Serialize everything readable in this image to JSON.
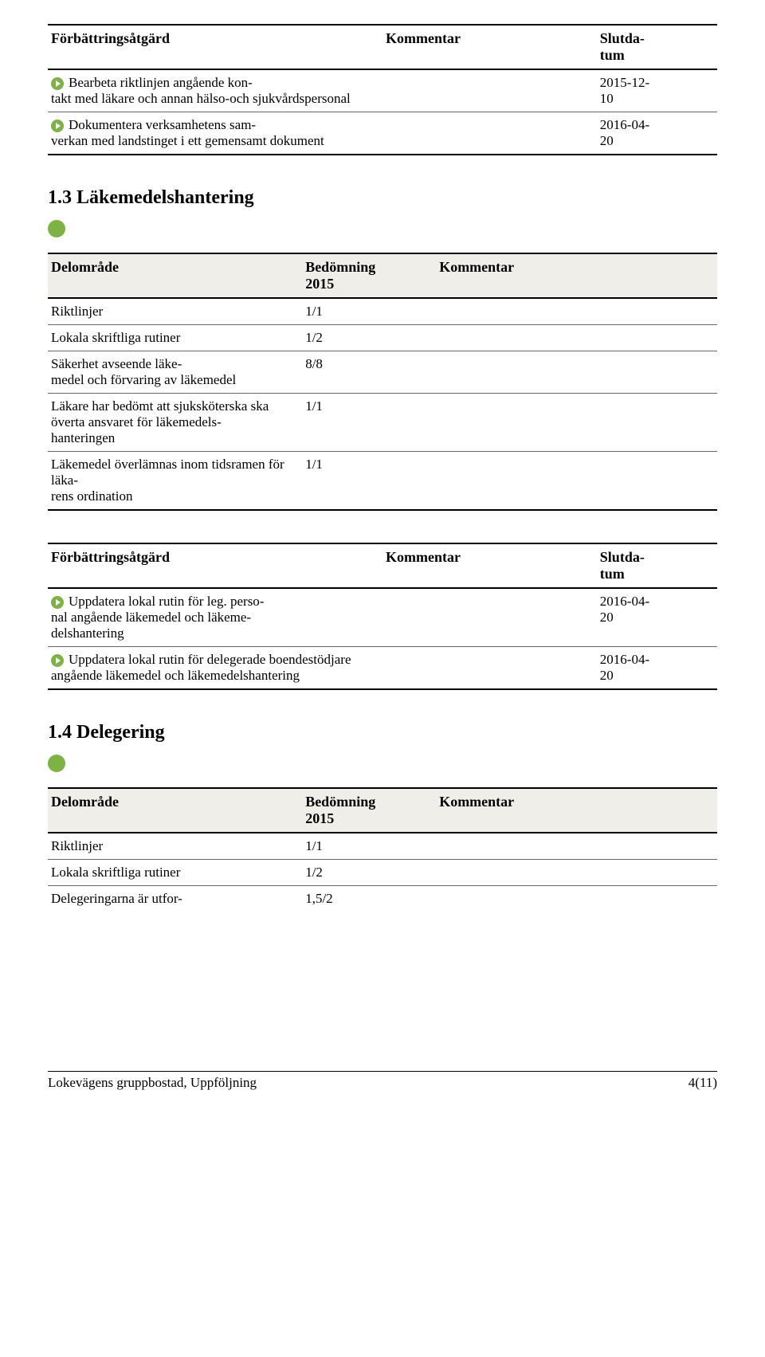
{
  "headers": {
    "forbattring": "Förbättringsåtgärd",
    "kommentar": "Kommentar",
    "slutdatum": "Slutda-\ntum",
    "delomrade": "Delområde",
    "bedomning": "Bedömning\n2015"
  },
  "table1": {
    "rows": [
      {
        "action": "Bearbeta riktlinjen angående kon-\ntakt med läkare och annan hälso-och sjukvårdspersonal",
        "date": "2015-12-\n10"
      },
      {
        "action": "Dokumentera verksamhetens sam-\nverkan med landstinget i ett gemensamt dokument",
        "date": "2016-04-\n20"
      }
    ]
  },
  "section13": "1.3  Läkemedelshantering",
  "table2": {
    "rows": [
      {
        "area": "Riktlinjer",
        "val": "1/1"
      },
      {
        "area": "Lokala skriftliga rutiner",
        "val": "1/2"
      },
      {
        "area": "Säkerhet avseende läke-\nmedel och förvaring av läkemedel",
        "val": "8/8"
      },
      {
        "area": "Läkare har bedömt att sjuksköterska ska överta ansvaret för läkemedels-\nhanteringen",
        "val": "1/1"
      },
      {
        "area": "Läkemedel överlämnas inom tidsramen för läka-\nrens ordination",
        "val": "1/1"
      }
    ]
  },
  "table3": {
    "rows": [
      {
        "action": "Uppdatera lokal rutin för leg. perso-\nnal angående läkemedel och läkeme-\ndelshantering",
        "date": "2016-04-\n20"
      },
      {
        "action": "Uppdatera lokal rutin för delegerade boendestödjare angående läkemedel och läkemedelshantering",
        "date": "2016-04-\n20"
      }
    ]
  },
  "section14": "1.4  Delegering",
  "table4": {
    "rows": [
      {
        "area": "Riktlinjer",
        "val": "1/1"
      },
      {
        "area": "Lokala skriftliga rutiner",
        "val": "1/2"
      },
      {
        "area": "Delegeringarna är utfor-",
        "val": "1,5/2"
      }
    ]
  },
  "footer": {
    "left": "Lokevägens gruppbostad, Uppföljning",
    "right": "4(11)"
  }
}
